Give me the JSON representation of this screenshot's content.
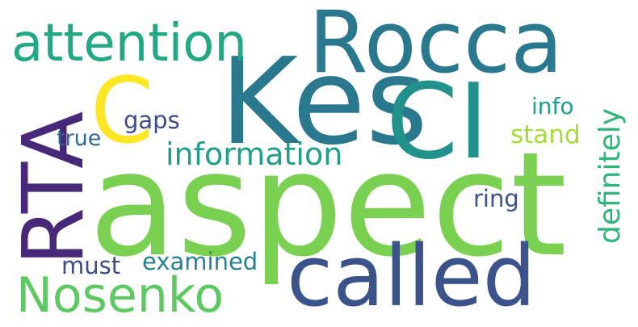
{
  "words": [
    {
      "id": "aspect",
      "text": "aspect",
      "color": "#7ad151"
    },
    {
      "id": "kes",
      "text": "Kes",
      "color": "#2a788e"
    },
    {
      "id": "ci",
      "text": "CI",
      "color": "#21918c"
    },
    {
      "id": "rocca",
      "text": "Rocca",
      "color": "#2a788e"
    },
    {
      "id": "called",
      "text": "called",
      "color": "#3b528b"
    },
    {
      "id": "rta",
      "text": "RTA",
      "color": "#482878"
    },
    {
      "id": "c",
      "text": "C",
      "color": "#fde725"
    },
    {
      "id": "attention",
      "text": "attention",
      "color": "#22a884"
    },
    {
      "id": "nosenko",
      "text": "Nosenko",
      "color": "#5ec962"
    },
    {
      "id": "information",
      "text": "information",
      "color": "#1f9e89"
    },
    {
      "id": "definitely",
      "text": "definitely",
      "color": "#2fb47c"
    },
    {
      "id": "gaps",
      "text": "gaps",
      "color": "#3e4a89"
    },
    {
      "id": "true",
      "text": "true",
      "color": "#31688e"
    },
    {
      "id": "info",
      "text": "info",
      "color": "#1f9e89"
    },
    {
      "id": "stand",
      "text": "stand",
      "color": "#a5db36"
    },
    {
      "id": "ring",
      "text": "ring",
      "color": "#3b528b"
    },
    {
      "id": "must",
      "text": "must",
      "color": "#3e4a89"
    },
    {
      "id": "examined",
      "text": "examined",
      "color": "#26828e"
    }
  ]
}
